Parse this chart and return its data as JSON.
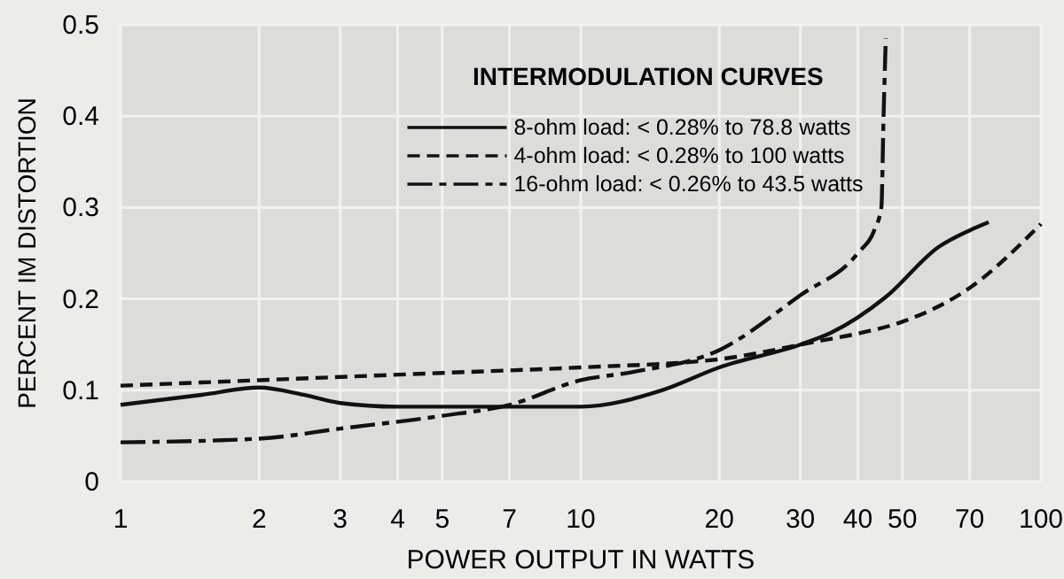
{
  "chart_data": {
    "type": "line",
    "title": "INTERMODULATION CURVES",
    "xlabel": "POWER OUTPUT IN WATTS",
    "ylabel": "PERCENT IM DISTORTION",
    "log": "x",
    "grid": true,
    "legend": "top",
    "xlim": [
      1,
      100
    ],
    "ylim": [
      0,
      0.5
    ],
    "xticks": [
      1,
      2,
      3,
      4,
      5,
      7,
      10,
      20,
      30,
      40,
      50,
      70,
      100
    ],
    "yticks": [
      0,
      0.1,
      0.2,
      0.3,
      0.4,
      0.5
    ],
    "series": [
      {
        "name": "8-ohm load: < 0.28% to 78.8 watts",
        "color": "#111111",
        "line_style": "solid",
        "x": [
          1,
          1.5,
          2,
          2.5,
          3,
          4,
          5,
          7,
          10,
          15,
          20,
          30,
          35,
          46,
          60,
          70,
          77
        ],
        "values": [
          0.084,
          0.095,
          0.103,
          0.095,
          0.086,
          0.082,
          0.082,
          0.082,
          0.082,
          0.1,
          0.125,
          0.15,
          0.163,
          0.202,
          0.257,
          0.275,
          0.284
        ]
      },
      {
        "name": "4-ohm load: < 0.28% to 100 watts",
        "color": "#111111",
        "line_style": "dashed",
        "x": [
          1,
          2,
          5,
          10,
          20,
          33,
          40,
          50,
          70,
          100
        ],
        "values": [
          0.105,
          0.111,
          0.119,
          0.125,
          0.134,
          0.154,
          0.162,
          0.175,
          0.212,
          0.282
        ]
      },
      {
        "name": "16-ohm load: < 0.26% to 43.5 watts",
        "color": "#111111",
        "line_style": "dashdot",
        "x": [
          1,
          2,
          3,
          5,
          7,
          10,
          13,
          20,
          30,
          40,
          43.5,
          45,
          45.5,
          46
        ],
        "values": [
          0.043,
          0.047,
          0.058,
          0.072,
          0.084,
          0.111,
          0.12,
          0.144,
          0.204,
          0.25,
          0.276,
          0.3,
          0.4,
          0.485
        ]
      }
    ]
  }
}
